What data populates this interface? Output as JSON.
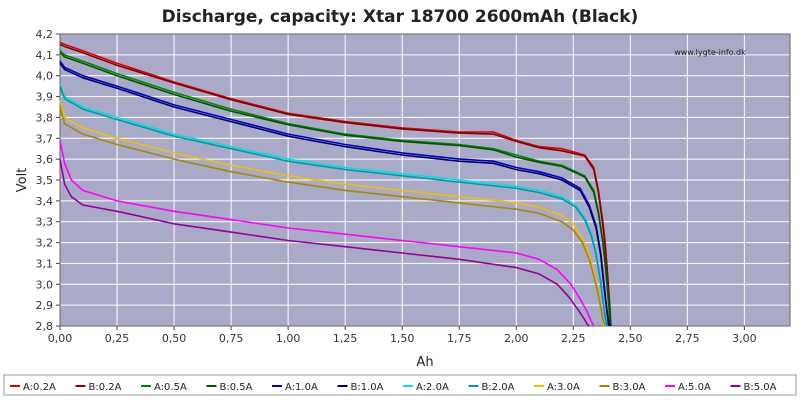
{
  "chart_data": {
    "type": "line",
    "title": "Discharge, capacity: Xtar 18700 2600mAh (Black)",
    "xlabel": "Ah",
    "ylabel": "Volt",
    "xlim": [
      0,
      3.2
    ],
    "ylim": [
      2.8,
      4.2
    ],
    "x_ticks": [
      0,
      0.25,
      0.5,
      0.75,
      1.0,
      1.25,
      1.5,
      1.75,
      2.0,
      2.25,
      2.5,
      2.75,
      3.0
    ],
    "x_tick_labels": [
      "0,00",
      "0,25",
      "0,50",
      "0,75",
      "1,00",
      "1,25",
      "1,50",
      "1,75",
      "2,00",
      "2,25",
      "2,50",
      "2,75",
      "3,00"
    ],
    "y_ticks": [
      2.8,
      2.9,
      3.0,
      3.1,
      3.2,
      3.3,
      3.4,
      3.5,
      3.6,
      3.7,
      3.8,
      3.9,
      4.0,
      4.1,
      4.2
    ],
    "y_tick_labels": [
      "2,8",
      "2,9",
      "3,0",
      "3,1",
      "3,2",
      "3,3",
      "3,4",
      "3,5",
      "3,6",
      "3,7",
      "3,8",
      "3,9",
      "4,0",
      "4,1",
      "4,2"
    ],
    "grid": true,
    "legend_position": "bottom",
    "watermark": "www.lygte-info.dk",
    "colors": {
      "background": "#ffffff",
      "plot_background": "#a9a9c8",
      "grid": "#ffffff"
    },
    "series": [
      {
        "name": "A:0.2A",
        "color": "#dd0000",
        "x": [
          0,
          0.02,
          0.1,
          0.25,
          0.5,
          0.75,
          1.0,
          1.25,
          1.5,
          1.75,
          1.9,
          2.0,
          2.1,
          2.2,
          2.3,
          2.34,
          2.36,
          2.38,
          2.39,
          2.4,
          2.405,
          2.41
        ],
        "y": [
          4.16,
          4.15,
          4.12,
          4.06,
          3.97,
          3.89,
          3.82,
          3.78,
          3.75,
          3.73,
          3.73,
          3.69,
          3.66,
          3.65,
          3.62,
          3.56,
          3.45,
          3.3,
          3.2,
          3.05,
          2.95,
          2.8
        ]
      },
      {
        "name": "B:0.2A",
        "color": "#880000",
        "x": [
          0,
          0.02,
          0.1,
          0.25,
          0.5,
          0.75,
          1.0,
          1.25,
          1.5,
          1.75,
          1.9,
          2.0,
          2.1,
          2.2,
          2.3,
          2.34,
          2.36,
          2.38,
          2.39,
          2.4,
          2.41,
          2.415
        ],
        "y": [
          4.15,
          4.14,
          4.11,
          4.05,
          3.965,
          3.885,
          3.815,
          3.775,
          3.745,
          3.725,
          3.72,
          3.685,
          3.655,
          3.64,
          3.615,
          3.55,
          3.44,
          3.28,
          3.18,
          3.05,
          2.9,
          2.8
        ]
      },
      {
        "name": "A:0.5A",
        "color": "#008800",
        "x": [
          0,
          0.02,
          0.1,
          0.25,
          0.5,
          0.75,
          1.0,
          1.25,
          1.5,
          1.75,
          1.9,
          2.0,
          2.1,
          2.2,
          2.3,
          2.34,
          2.36,
          2.38,
          2.39,
          2.4,
          2.405,
          2.41
        ],
        "y": [
          4.12,
          4.1,
          4.07,
          4.01,
          3.92,
          3.84,
          3.77,
          3.72,
          3.69,
          3.67,
          3.65,
          3.62,
          3.59,
          3.57,
          3.52,
          3.45,
          3.35,
          3.2,
          3.1,
          2.98,
          2.9,
          2.8
        ]
      },
      {
        "name": "B:0.5A",
        "color": "#005500",
        "x": [
          0,
          0.02,
          0.1,
          0.25,
          0.5,
          0.75,
          1.0,
          1.25,
          1.5,
          1.75,
          1.9,
          2.0,
          2.1,
          2.2,
          2.3,
          2.34,
          2.36,
          2.38,
          2.39,
          2.4,
          2.41,
          2.415
        ],
        "y": [
          4.11,
          4.09,
          4.06,
          4.0,
          3.91,
          3.83,
          3.765,
          3.715,
          3.685,
          3.665,
          3.645,
          3.61,
          3.585,
          3.565,
          3.515,
          3.44,
          3.34,
          3.2,
          3.1,
          2.98,
          2.88,
          2.8
        ]
      },
      {
        "name": "A:1.0A",
        "color": "#0000cc",
        "x": [
          0,
          0.02,
          0.1,
          0.25,
          0.5,
          0.75,
          1.0,
          1.25,
          1.5,
          1.75,
          1.9,
          2.0,
          2.1,
          2.2,
          2.28,
          2.32,
          2.35,
          2.37,
          2.38,
          2.39,
          2.4,
          2.405
        ],
        "y": [
          4.07,
          4.04,
          4.0,
          3.95,
          3.86,
          3.79,
          3.72,
          3.67,
          3.63,
          3.6,
          3.59,
          3.56,
          3.54,
          3.51,
          3.46,
          3.38,
          3.28,
          3.15,
          3.05,
          2.95,
          2.85,
          2.8
        ]
      },
      {
        "name": "B:1.0A",
        "color": "#000066",
        "x": [
          0,
          0.02,
          0.1,
          0.25,
          0.5,
          0.75,
          1.0,
          1.25,
          1.5,
          1.75,
          1.9,
          2.0,
          2.1,
          2.2,
          2.28,
          2.32,
          2.35,
          2.37,
          2.38,
          2.39,
          2.4,
          2.41
        ],
        "y": [
          4.06,
          4.03,
          3.99,
          3.94,
          3.85,
          3.78,
          3.71,
          3.66,
          3.62,
          3.59,
          3.58,
          3.55,
          3.53,
          3.5,
          3.45,
          3.37,
          3.27,
          3.14,
          3.04,
          2.94,
          2.85,
          2.8
        ]
      },
      {
        "name": "A:2.0A",
        "color": "#00e0e0",
        "x": [
          0,
          0.02,
          0.1,
          0.25,
          0.5,
          0.75,
          1.0,
          1.25,
          1.5,
          1.75,
          2.0,
          2.1,
          2.2,
          2.26,
          2.3,
          2.33,
          2.35,
          2.37,
          2.38,
          2.39,
          2.395
        ],
        "y": [
          3.96,
          3.9,
          3.85,
          3.8,
          3.72,
          3.66,
          3.6,
          3.56,
          3.53,
          3.5,
          3.47,
          3.45,
          3.42,
          3.38,
          3.32,
          3.24,
          3.15,
          3.02,
          2.93,
          2.84,
          2.8
        ]
      },
      {
        "name": "B:2.0A",
        "color": "#0099aa",
        "x": [
          0,
          0.02,
          0.1,
          0.25,
          0.5,
          0.75,
          1.0,
          1.25,
          1.5,
          1.75,
          2.0,
          2.1,
          2.2,
          2.26,
          2.3,
          2.33,
          2.35,
          2.37,
          2.38,
          2.39,
          2.4
        ],
        "y": [
          3.95,
          3.89,
          3.84,
          3.79,
          3.71,
          3.65,
          3.59,
          3.55,
          3.52,
          3.49,
          3.46,
          3.44,
          3.41,
          3.37,
          3.31,
          3.23,
          3.14,
          3.01,
          2.92,
          2.84,
          2.8
        ]
      },
      {
        "name": "A:3.0A",
        "color": "#f0c000",
        "x": [
          0,
          0.02,
          0.1,
          0.25,
          0.5,
          0.75,
          1.0,
          1.25,
          1.5,
          1.75,
          2.0,
          2.1,
          2.2,
          2.25,
          2.29,
          2.32,
          2.34,
          2.36,
          2.37,
          2.38,
          2.385
        ],
        "y": [
          3.88,
          3.8,
          3.75,
          3.7,
          3.63,
          3.57,
          3.52,
          3.48,
          3.45,
          3.42,
          3.39,
          3.37,
          3.33,
          3.29,
          3.22,
          3.14,
          3.06,
          2.96,
          2.9,
          2.83,
          2.8
        ]
      },
      {
        "name": "B:3.0A",
        "color": "#aa8800",
        "x": [
          0,
          0.02,
          0.1,
          0.25,
          0.5,
          0.75,
          1.0,
          1.25,
          1.5,
          1.75,
          2.0,
          2.1,
          2.2,
          2.25,
          2.29,
          2.32,
          2.34,
          2.36,
          2.37,
          2.38,
          2.39
        ],
        "y": [
          3.85,
          3.77,
          3.72,
          3.67,
          3.6,
          3.54,
          3.49,
          3.45,
          3.42,
          3.39,
          3.36,
          3.34,
          3.3,
          3.26,
          3.2,
          3.12,
          3.04,
          2.95,
          2.89,
          2.83,
          2.8
        ]
      },
      {
        "name": "A:5.0A",
        "color": "#ff00ff",
        "x": [
          0,
          0.02,
          0.05,
          0.1,
          0.25,
          0.5,
          0.75,
          1.0,
          1.25,
          1.5,
          1.75,
          2.0,
          2.1,
          2.18,
          2.24,
          2.28,
          2.31,
          2.33,
          2.34
        ],
        "y": [
          3.69,
          3.58,
          3.5,
          3.45,
          3.4,
          3.35,
          3.31,
          3.27,
          3.24,
          3.21,
          3.18,
          3.15,
          3.12,
          3.07,
          3.0,
          2.93,
          2.87,
          2.82,
          2.8
        ]
      },
      {
        "name": "B:5.0A",
        "color": "#990099",
        "x": [
          0,
          0.02,
          0.05,
          0.1,
          0.25,
          0.5,
          0.75,
          1.0,
          1.25,
          1.5,
          1.75,
          2.0,
          2.1,
          2.18,
          2.23,
          2.27,
          2.3,
          2.31,
          2.32
        ],
        "y": [
          3.6,
          3.48,
          3.42,
          3.38,
          3.35,
          3.29,
          3.25,
          3.21,
          3.18,
          3.15,
          3.12,
          3.08,
          3.05,
          3.0,
          2.94,
          2.88,
          2.83,
          2.81,
          2.8
        ]
      }
    ]
  }
}
